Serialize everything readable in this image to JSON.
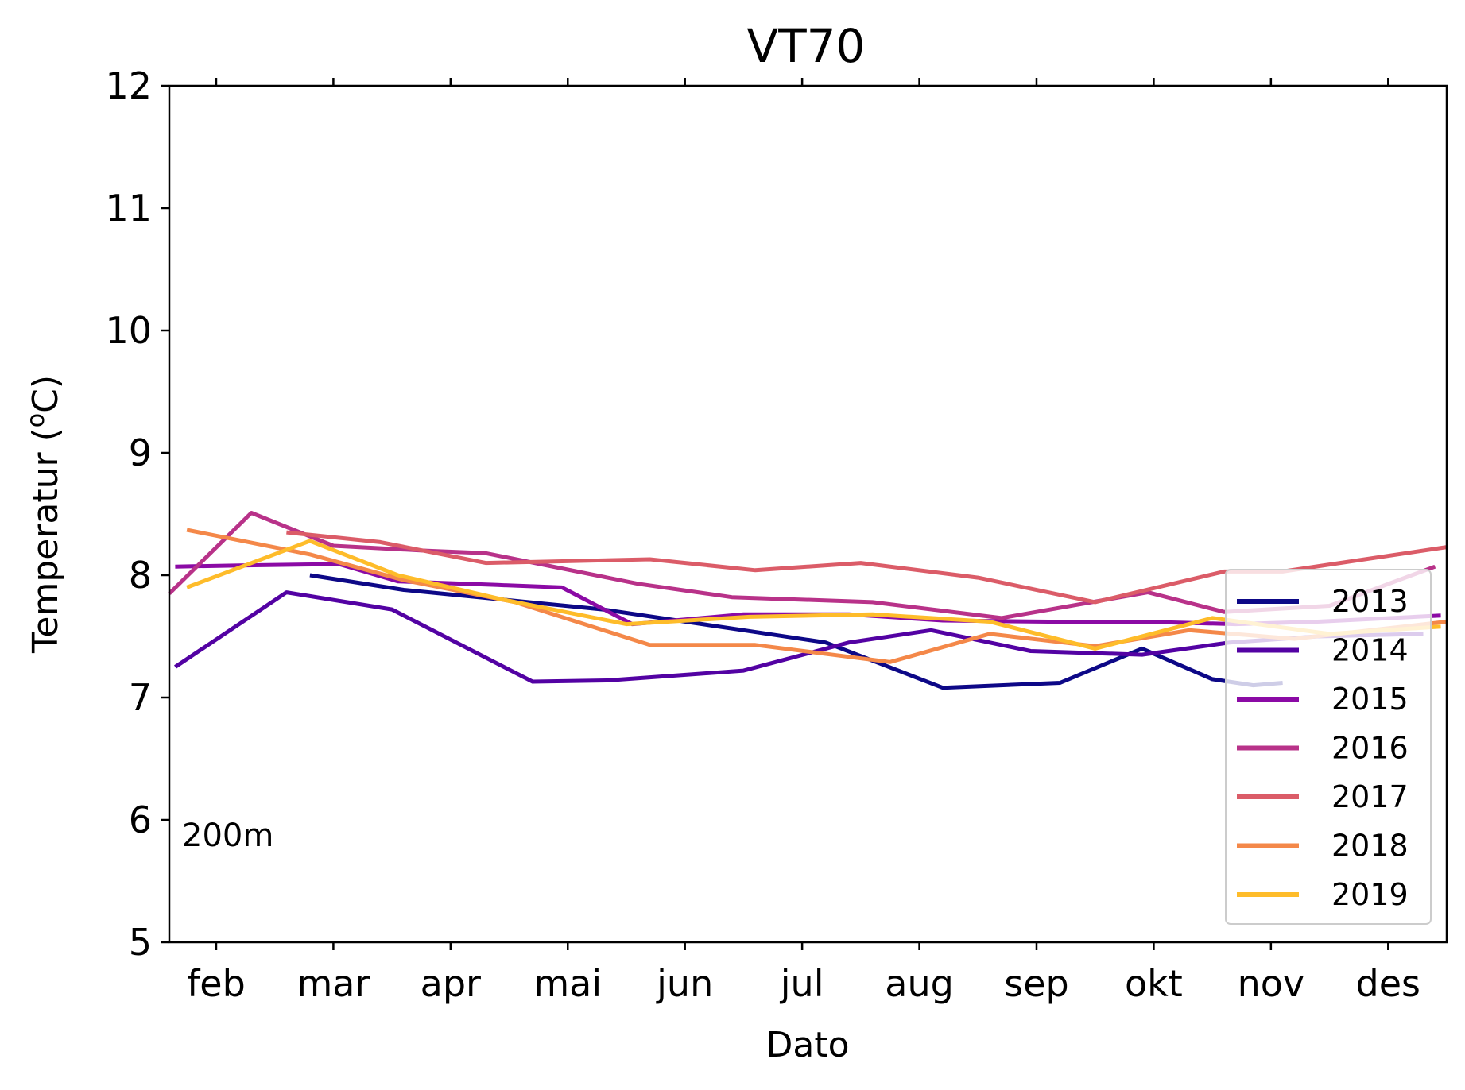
{
  "chart_data": {
    "type": "line",
    "title": "VT70",
    "xlabel": "Dato",
    "ylabel": "Temperatur (ᴼC)",
    "ylabel_main": "Temperatur (",
    "ylabel_sup": "o",
    "ylabel_end": "C)",
    "ylim": [
      5,
      12
    ],
    "yticks": [
      5,
      6,
      7,
      8,
      9,
      10,
      11,
      12
    ],
    "xlim": [
      1.6,
      12.5
    ],
    "xticks": [
      {
        "label": "feb",
        "x": 2
      },
      {
        "label": "mar",
        "x": 3
      },
      {
        "label": "apr",
        "x": 4
      },
      {
        "label": "mai",
        "x": 5
      },
      {
        "label": "jun",
        "x": 6
      },
      {
        "label": "jul",
        "x": 7
      },
      {
        "label": "aug",
        "x": 8
      },
      {
        "label": "sep",
        "x": 9
      },
      {
        "label": "okt",
        "x": 10
      },
      {
        "label": "nov",
        "x": 11
      },
      {
        "label": "des",
        "x": 12
      }
    ],
    "annotation": "200m",
    "legend_position": "lower right",
    "grid": false,
    "series": [
      {
        "name": "2013",
        "color": "#0d0887",
        "x": [
          2.8,
          3.6,
          4.45,
          5.3,
          6.5,
          7.2,
          8.2,
          9.2,
          9.9,
          10.5,
          10.85,
          11.1
        ],
        "y": [
          8.0,
          7.88,
          7.8,
          7.72,
          7.55,
          7.45,
          7.08,
          7.12,
          7.4,
          7.15,
          7.1,
          7.12
        ]
      },
      {
        "name": "2014",
        "color": "#5302a3",
        "x": [
          1.65,
          2.6,
          3.5,
          4.7,
          5.35,
          6.5,
          7.4,
          8.1,
          8.95,
          9.9,
          10.65,
          11.4,
          12.3
        ],
        "y": [
          7.25,
          7.86,
          7.72,
          7.13,
          7.14,
          7.22,
          7.45,
          7.55,
          7.38,
          7.35,
          7.45,
          7.5,
          7.52
        ]
      },
      {
        "name": "2015",
        "color": "#8b0aa5",
        "x": [
          1.65,
          2.2,
          3.05,
          3.55,
          4.4,
          4.95,
          5.55,
          6.5,
          7.4,
          8.2,
          9.1,
          9.9,
          10.7,
          11.4,
          12.45
        ],
        "y": [
          8.07,
          8.08,
          8.09,
          7.95,
          7.92,
          7.9,
          7.6,
          7.68,
          7.68,
          7.63,
          7.62,
          7.62,
          7.6,
          7.62,
          7.67
        ]
      },
      {
        "name": "2016",
        "color": "#b83289",
        "x": [
          1.6,
          2.3,
          3.0,
          3.8,
          4.3,
          5.6,
          6.4,
          7.6,
          8.7,
          9.95,
          10.6,
          11.5,
          12.4
        ],
        "y": [
          7.85,
          8.51,
          8.24,
          8.2,
          8.18,
          7.93,
          7.82,
          7.78,
          7.65,
          7.86,
          7.7,
          7.75,
          8.07
        ]
      },
      {
        "name": "2017",
        "color": "#db5c68",
        "x": [
          2.6,
          3.4,
          4.3,
          5.7,
          6.6,
          7.5,
          8.5,
          9.5,
          10.6,
          11.1,
          12.5
        ],
        "y": [
          8.35,
          8.27,
          8.1,
          8.13,
          8.04,
          8.1,
          7.98,
          7.78,
          8.03,
          8.03,
          8.23
        ]
      },
      {
        "name": "2018",
        "color": "#f48849",
        "x": [
          1.75,
          2.8,
          3.6,
          4.55,
          5.7,
          6.6,
          7.75,
          8.6,
          9.5,
          10.3,
          11.2,
          12.5
        ],
        "y": [
          8.37,
          8.17,
          7.96,
          7.78,
          7.43,
          7.43,
          7.29,
          7.52,
          7.42,
          7.55,
          7.48,
          7.62
        ]
      },
      {
        "name": "2019",
        "color": "#febc2a",
        "x": [
          1.75,
          2.8,
          3.55,
          4.45,
          5.5,
          6.55,
          7.6,
          8.6,
          9.5,
          10.5,
          11.5,
          12.45
        ],
        "y": [
          7.9,
          8.28,
          8.0,
          7.8,
          7.6,
          7.66,
          7.68,
          7.62,
          7.4,
          7.65,
          7.52,
          7.58
        ]
      }
    ]
  }
}
